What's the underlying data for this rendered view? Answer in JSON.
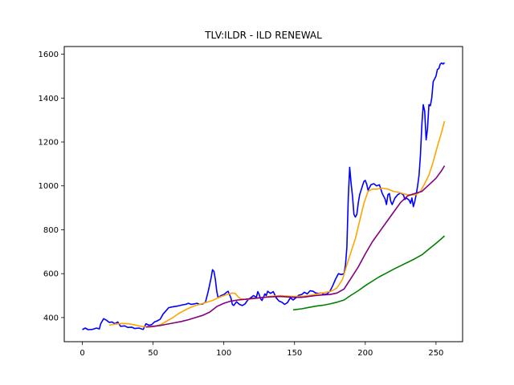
{
  "chart_data": {
    "type": "line",
    "title": "TLV:ILDR - ILD RENEWAL",
    "xlabel": "",
    "ylabel": "",
    "xlim": [
      -12.8,
      268.8
    ],
    "ylim": [
      290,
      1635
    ],
    "x_ticks": [
      0,
      50,
      100,
      150,
      200,
      250
    ],
    "y_ticks": [
      400,
      600,
      800,
      1000,
      1200,
      1400,
      1600
    ],
    "grid": false,
    "legend": "none",
    "series": [
      {
        "color": "#0000ff",
        "points": [
          [
            0,
            345
          ],
          [
            2,
            352
          ],
          [
            4,
            345
          ],
          [
            7,
            346
          ],
          [
            10,
            352
          ],
          [
            12,
            348
          ],
          [
            13,
            372
          ],
          [
            15,
            395
          ],
          [
            17,
            388
          ],
          [
            19,
            378
          ],
          [
            21,
            380
          ],
          [
            23,
            372
          ],
          [
            25,
            380
          ],
          [
            27,
            360
          ],
          [
            30,
            362
          ],
          [
            32,
            355
          ],
          [
            35,
            356
          ],
          [
            37,
            350
          ],
          [
            40,
            352
          ],
          [
            43,
            346
          ],
          [
            45,
            372
          ],
          [
            47,
            365
          ],
          [
            49,
            368
          ],
          [
            51,
            380
          ],
          [
            53,
            385
          ],
          [
            55,
            392
          ],
          [
            57,
            415
          ],
          [
            59,
            430
          ],
          [
            61,
            445
          ],
          [
            63,
            448
          ],
          [
            65,
            450
          ],
          [
            67,
            452
          ],
          [
            69,
            455
          ],
          [
            71,
            458
          ],
          [
            73,
            460
          ],
          [
            75,
            465
          ],
          [
            77,
            460
          ],
          [
            79,
            462
          ],
          [
            81,
            465
          ],
          [
            83,
            460
          ],
          [
            85,
            462
          ],
          [
            87,
            470
          ],
          [
            89,
            520
          ],
          [
            91,
            580
          ],
          [
            92,
            618
          ],
          [
            93,
            610
          ],
          [
            94,
            575
          ],
          [
            95,
            520
          ],
          [
            96,
            490
          ],
          [
            98,
            500
          ],
          [
            100,
            505
          ],
          [
            102,
            515
          ],
          [
            103,
            520
          ],
          [
            104,
            505
          ],
          [
            105,
            490
          ],
          [
            106,
            460
          ],
          [
            107,
            455
          ],
          [
            109,
            472
          ],
          [
            111,
            460
          ],
          [
            113,
            455
          ],
          [
            115,
            462
          ],
          [
            117,
            480
          ],
          [
            119,
            490
          ],
          [
            121,
            500
          ],
          [
            123,
            492
          ],
          [
            124,
            518
          ],
          [
            125,
            505
          ],
          [
            126,
            485
          ],
          [
            127,
            478
          ],
          [
            128,
            492
          ],
          [
            129,
            508
          ],
          [
            130,
            500
          ],
          [
            131,
            520
          ],
          [
            133,
            510
          ],
          [
            135,
            518
          ],
          [
            137,
            490
          ],
          [
            139,
            475
          ],
          [
            141,
            470
          ],
          [
            143,
            460
          ],
          [
            145,
            468
          ],
          [
            147,
            490
          ],
          [
            149,
            480
          ],
          [
            151,
            490
          ],
          [
            153,
            502
          ],
          [
            155,
            505
          ],
          [
            157,
            515
          ],
          [
            159,
            508
          ],
          [
            161,
            522
          ],
          [
            163,
            520
          ],
          [
            165,
            512
          ],
          [
            167,
            510
          ],
          [
            169,
            512
          ],
          [
            171,
            505
          ],
          [
            173,
            508
          ],
          [
            175,
            520
          ],
          [
            177,
            545
          ],
          [
            179,
            575
          ],
          [
            181,
            600
          ],
          [
            183,
            596
          ],
          [
            185,
            600
          ],
          [
            186,
            640
          ],
          [
            187,
            720
          ],
          [
            188,
            950
          ],
          [
            189,
            1085
          ],
          [
            190,
            1010
          ],
          [
            191,
            950
          ],
          [
            192,
            870
          ],
          [
            193,
            858
          ],
          [
            194,
            870
          ],
          [
            195,
            920
          ],
          [
            196,
            960
          ],
          [
            198,
            1000
          ],
          [
            199,
            1020
          ],
          [
            200,
            1025
          ],
          [
            201,
            1008
          ],
          [
            202,
            980
          ],
          [
            204,
            1005
          ],
          [
            206,
            1010
          ],
          [
            208,
            1000
          ],
          [
            210,
            1005
          ],
          [
            212,
            965
          ],
          [
            214,
            940
          ],
          [
            215,
            915
          ],
          [
            216,
            960
          ],
          [
            217,
            965
          ],
          [
            218,
            930
          ],
          [
            219,
            915
          ],
          [
            221,
            945
          ],
          [
            223,
            960
          ],
          [
            225,
            968
          ],
          [
            227,
            958
          ],
          [
            228,
            938
          ],
          [
            229,
            945
          ],
          [
            231,
            935
          ],
          [
            232,
            920
          ],
          [
            233,
            945
          ],
          [
            234,
            905
          ],
          [
            235,
            930
          ],
          [
            236,
            960
          ],
          [
            237,
            1000
          ],
          [
            238,
            1050
          ],
          [
            239,
            1140
          ],
          [
            240,
            1280
          ],
          [
            241,
            1370
          ],
          [
            242,
            1340
          ],
          [
            243,
            1210
          ],
          [
            244,
            1260
          ],
          [
            245,
            1370
          ],
          [
            246,
            1365
          ],
          [
            247,
            1400
          ],
          [
            248,
            1475
          ],
          [
            250,
            1500
          ],
          [
            251,
            1530
          ],
          [
            252,
            1535
          ],
          [
            253,
            1555
          ],
          [
            254,
            1560
          ],
          [
            255,
            1555
          ],
          [
            256,
            1562
          ]
        ]
      },
      {
        "color": "#ffa500",
        "points": [
          [
            19,
            365
          ],
          [
            23,
            370
          ],
          [
            28,
            373
          ],
          [
            32,
            372
          ],
          [
            36,
            368
          ],
          [
            40,
            362
          ],
          [
            44,
            358
          ],
          [
            48,
            357
          ],
          [
            52,
            360
          ],
          [
            56,
            370
          ],
          [
            60,
            385
          ],
          [
            64,
            400
          ],
          [
            68,
            418
          ],
          [
            72,
            432
          ],
          [
            76,
            445
          ],
          [
            80,
            455
          ],
          [
            84,
            462
          ],
          [
            88,
            470
          ],
          [
            92,
            478
          ],
          [
            96,
            490
          ],
          [
            100,
            500
          ],
          [
            104,
            508
          ],
          [
            106,
            512
          ],
          [
            108,
            510
          ],
          [
            110,
            495
          ],
          [
            112,
            485
          ],
          [
            116,
            482
          ],
          [
            120,
            485
          ],
          [
            124,
            488
          ],
          [
            128,
            492
          ],
          [
            132,
            496
          ],
          [
            136,
            498
          ],
          [
            140,
            500
          ],
          [
            144,
            498
          ],
          [
            148,
            496
          ],
          [
            152,
            496
          ],
          [
            156,
            497
          ],
          [
            160,
            500
          ],
          [
            164,
            505
          ],
          [
            168,
            510
          ],
          [
            172,
            515
          ],
          [
            176,
            520
          ],
          [
            180,
            535
          ],
          [
            184,
            575
          ],
          [
            187,
            640
          ],
          [
            190,
            700
          ],
          [
            193,
            760
          ],
          [
            196,
            840
          ],
          [
            199,
            920
          ],
          [
            202,
            975
          ],
          [
            205,
            985
          ],
          [
            208,
            985
          ],
          [
            212,
            990
          ],
          [
            216,
            985
          ],
          [
            220,
            975
          ],
          [
            224,
            970
          ],
          [
            228,
            962
          ],
          [
            232,
            958
          ],
          [
            236,
            960
          ],
          [
            239,
            975
          ],
          [
            242,
            1010
          ],
          [
            245,
            1050
          ],
          [
            248,
            1110
          ],
          [
            251,
            1180
          ],
          [
            254,
            1245
          ],
          [
            256,
            1295
          ]
        ]
      },
      {
        "color": "#800080",
        "points": [
          [
            45,
            357
          ],
          [
            50,
            360
          ],
          [
            55,
            364
          ],
          [
            60,
            370
          ],
          [
            65,
            376
          ],
          [
            70,
            382
          ],
          [
            75,
            390
          ],
          [
            80,
            400
          ],
          [
            85,
            410
          ],
          [
            90,
            425
          ],
          [
            95,
            450
          ],
          [
            100,
            465
          ],
          [
            105,
            475
          ],
          [
            110,
            480
          ],
          [
            115,
            483
          ],
          [
            120,
            487
          ],
          [
            125,
            490
          ],
          [
            130,
            493
          ],
          [
            135,
            495
          ],
          [
            140,
            496
          ],
          [
            145,
            494
          ],
          [
            150,
            492
          ],
          [
            155,
            492
          ],
          [
            160,
            496
          ],
          [
            165,
            500
          ],
          [
            170,
            503
          ],
          [
            175,
            505
          ],
          [
            180,
            512
          ],
          [
            185,
            530
          ],
          [
            190,
            580
          ],
          [
            195,
            630
          ],
          [
            200,
            690
          ],
          [
            205,
            745
          ],
          [
            210,
            790
          ],
          [
            215,
            835
          ],
          [
            220,
            880
          ],
          [
            225,
            925
          ],
          [
            230,
            955
          ],
          [
            235,
            965
          ],
          [
            240,
            975
          ],
          [
            245,
            1005
          ],
          [
            250,
            1035
          ],
          [
            254,
            1070
          ],
          [
            256,
            1092
          ]
        ]
      },
      {
        "color": "#008000",
        "points": [
          [
            149,
            435
          ],
          [
            155,
            440
          ],
          [
            160,
            446
          ],
          [
            165,
            452
          ],
          [
            170,
            456
          ],
          [
            175,
            462
          ],
          [
            180,
            470
          ],
          [
            185,
            480
          ],
          [
            190,
            502
          ],
          [
            195,
            522
          ],
          [
            200,
            545
          ],
          [
            205,
            566
          ],
          [
            210,
            586
          ],
          [
            215,
            603
          ],
          [
            220,
            620
          ],
          [
            225,
            636
          ],
          [
            230,
            652
          ],
          [
            235,
            668
          ],
          [
            240,
            686
          ],
          [
            245,
            712
          ],
          [
            250,
            738
          ],
          [
            254,
            760
          ],
          [
            256,
            772
          ]
        ]
      }
    ]
  }
}
